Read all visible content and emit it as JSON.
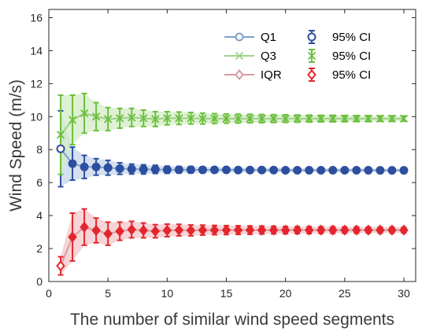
{
  "chart_data": {
    "type": "line",
    "xlabel": "The number of similar wind speed segments",
    "ylabel": "Wind Speed (m/s)",
    "xlim": [
      0,
      31
    ],
    "ylim": [
      0,
      16.5
    ],
    "xticks": [
      "0",
      "5",
      "10",
      "15",
      "20",
      "25",
      "30"
    ],
    "yticks": [
      "0",
      "2",
      "4",
      "6",
      "8",
      "10",
      "12",
      "14",
      "16"
    ],
    "x": [
      1,
      2,
      3,
      4,
      5,
      6,
      7,
      8,
      9,
      10,
      11,
      12,
      13,
      14,
      15,
      16,
      17,
      18,
      19,
      20,
      21,
      22,
      23,
      24,
      25,
      26,
      27,
      28,
      29,
      30
    ],
    "legend_position": "top-right",
    "series": [
      {
        "name": "Q1",
        "ci_name": "95% CI",
        "marker": "circle",
        "line_color": "#7aa3cc",
        "ci_color": "#2e4f9f",
        "band_color": "#c5d6ea",
        "values": [
          8.05,
          7.15,
          6.95,
          6.95,
          6.9,
          6.85,
          6.82,
          6.8,
          6.8,
          6.78,
          6.78,
          6.78,
          6.77,
          6.77,
          6.77,
          6.76,
          6.76,
          6.76,
          6.76,
          6.75,
          6.75,
          6.75,
          6.75,
          6.75,
          6.75,
          6.75,
          6.75,
          6.74,
          6.74,
          6.74
        ],
        "ci_half": [
          2.3,
          1.0,
          0.7,
          0.5,
          0.45,
          0.35,
          0.3,
          0.28,
          0.25,
          0.22,
          0.2,
          0.2,
          0.18,
          0.17,
          0.16,
          0.15,
          0.15,
          0.14,
          0.14,
          0.13,
          0.13,
          0.12,
          0.12,
          0.12,
          0.12,
          0.11,
          0.11,
          0.11,
          0.11,
          0.1
        ]
      },
      {
        "name": "Q3",
        "ci_name": "95% CI",
        "marker": "cross",
        "line_color": "#9fd08a",
        "ci_color": "#6cbf3e",
        "band_color": "#d3ecc5",
        "values": [
          8.9,
          9.8,
          10.2,
          10.0,
          9.85,
          9.9,
          9.95,
          9.9,
          9.85,
          9.9,
          9.9,
          9.9,
          9.88,
          9.88,
          9.88,
          9.88,
          9.88,
          9.88,
          9.88,
          9.88,
          9.88,
          9.88,
          9.88,
          9.88,
          9.88,
          9.88,
          9.88,
          9.88,
          9.88,
          9.88
        ],
        "ci_half": [
          2.4,
          1.5,
          1.2,
          0.85,
          0.7,
          0.6,
          0.55,
          0.5,
          0.45,
          0.4,
          0.38,
          0.35,
          0.33,
          0.3,
          0.28,
          0.27,
          0.26,
          0.25,
          0.24,
          0.23,
          0.22,
          0.21,
          0.2,
          0.2,
          0.19,
          0.18,
          0.18,
          0.17,
          0.17,
          0.16
        ]
      },
      {
        "name": "IQR",
        "ci_name": "95% CI",
        "marker": "diamond",
        "line_color": "#d89aa0",
        "ci_color": "#e3262d",
        "band_color": "#f3c6c9",
        "values": [
          0.95,
          2.7,
          3.3,
          3.1,
          2.9,
          3.05,
          3.15,
          3.1,
          3.05,
          3.1,
          3.12,
          3.1,
          3.12,
          3.12,
          3.12,
          3.12,
          3.12,
          3.12,
          3.12,
          3.12,
          3.12,
          3.12,
          3.12,
          3.12,
          3.12,
          3.12,
          3.12,
          3.12,
          3.12,
          3.12
        ],
        "ci_half": [
          0.55,
          1.45,
          1.1,
          0.75,
          0.7,
          0.55,
          0.5,
          0.45,
          0.4,
          0.38,
          0.35,
          0.33,
          0.3,
          0.28,
          0.27,
          0.26,
          0.25,
          0.24,
          0.23,
          0.22,
          0.21,
          0.21,
          0.2,
          0.2,
          0.19,
          0.19,
          0.18,
          0.18,
          0.18,
          0.17
        ]
      }
    ]
  }
}
